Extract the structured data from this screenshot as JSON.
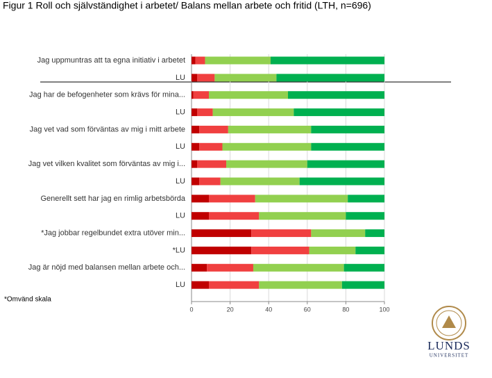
{
  "chart_data": {
    "type": "stacked-barh",
    "title": "Figur 1 Roll och självständighet i arbetet/ Balans mellan arbete och fritid (LTH, n=696)",
    "categories": [
      "Jag uppmuntras att ta egna initiativ i arbetet",
      "LU",
      "Jag har de befogenheter som krävs för mina...",
      "LU",
      "Jag vet vad som förväntas av mig i mitt arbete",
      "LU",
      "Jag vet vilken kvalitet som förväntas av mig i...",
      "LU",
      "Generellt sett har jag en rimlig arbetsbörda",
      "LU",
      "*Jag jobbar regelbundet extra utöver min...",
      "*LU",
      "Jag är nöjd med balansen mellan arbete och...",
      "LU"
    ],
    "series": [
      {
        "color": "#c00000",
        "values": [
          2,
          3,
          1,
          3,
          4,
          4,
          3,
          4,
          9,
          9,
          31,
          31,
          8,
          9
        ]
      },
      {
        "color": "#f04040",
        "values": [
          5,
          9,
          8,
          8,
          15,
          12,
          15,
          11,
          24,
          26,
          31,
          30,
          24,
          26
        ]
      },
      {
        "color": "#92d050",
        "values": [
          34,
          32,
          41,
          42,
          43,
          46,
          42,
          41,
          48,
          45,
          28,
          24,
          47,
          43
        ]
      },
      {
        "color": "#00b050",
        "values": [
          59,
          56,
          50,
          47,
          38,
          38,
          40,
          44,
          19,
          20,
          10,
          15,
          21,
          22
        ]
      }
    ],
    "xlim": [
      0,
      100
    ],
    "xticks": [
      0,
      20,
      40,
      60,
      80,
      100
    ],
    "grid": true,
    "note": "*Omvänd skala"
  },
  "logo": {
    "name": "LUNDS",
    "sub": "UNIVERSITET"
  }
}
